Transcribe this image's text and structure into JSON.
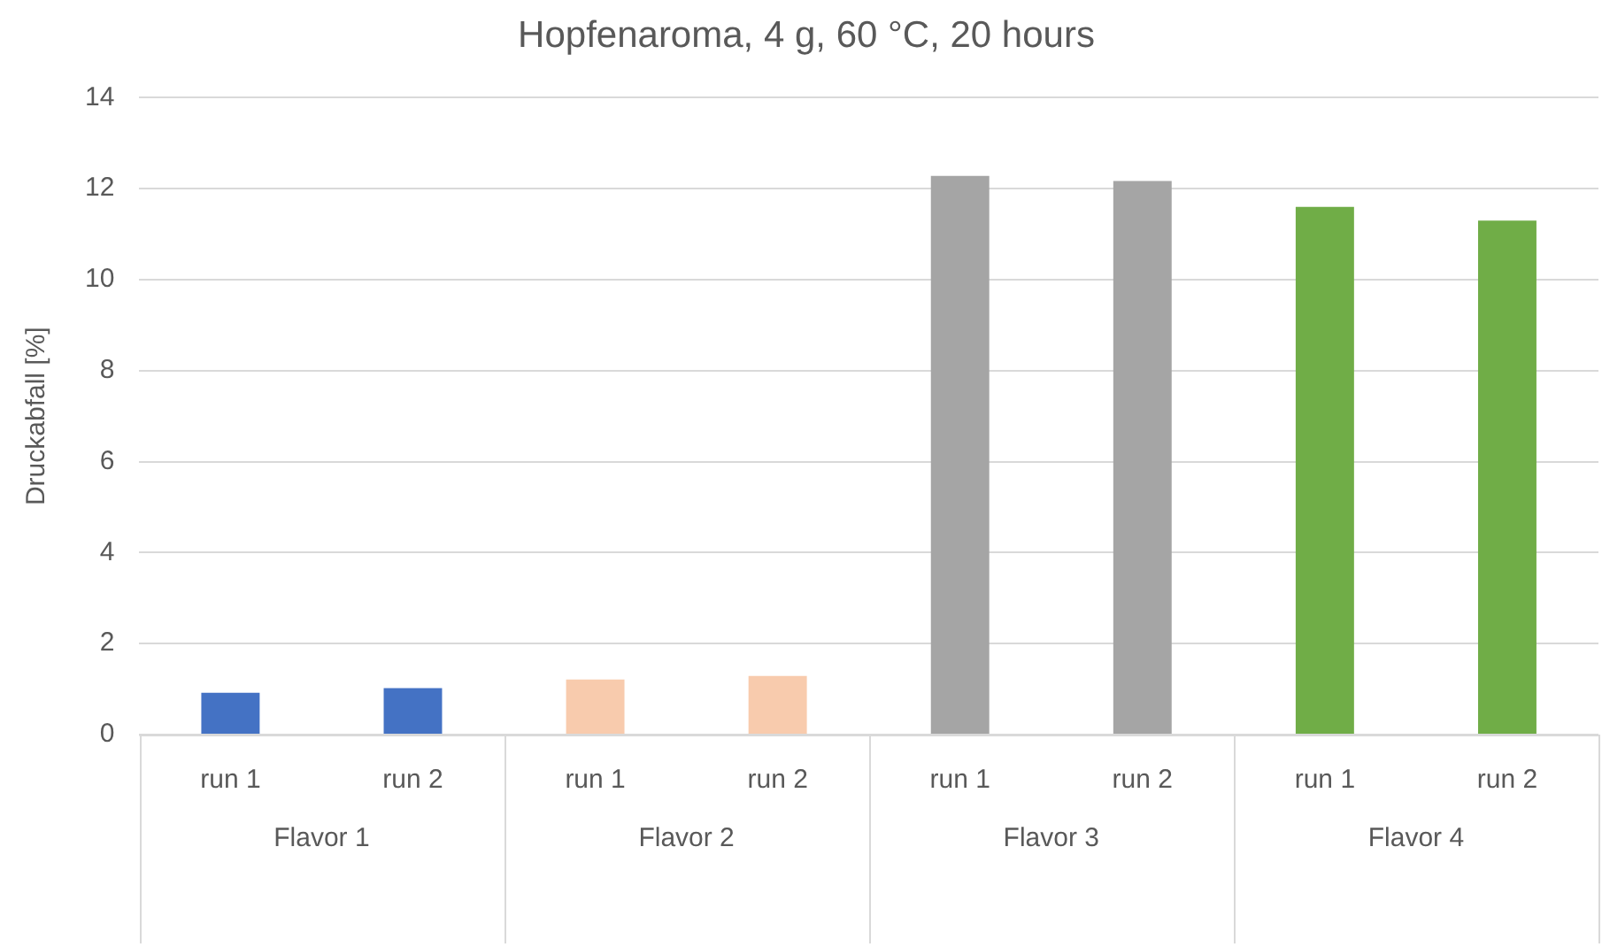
{
  "chart_data": {
    "type": "bar",
    "title": "Hopfenaroma, 4 g, 60 °C, 20 hours",
    "ylabel": "Druckabfall [%]",
    "categories": [
      "Flavor 1",
      "Flavor 2",
      "Flavor 3",
      "Flavor 4"
    ],
    "series": [
      {
        "name": "run 1",
        "colors": [
          "#4472c4",
          "#f8cbad",
          "#a5a5a5",
          "#70ad47"
        ],
        "values": [
          0.92,
          1.21,
          12.28,
          11.6
        ]
      },
      {
        "name": "run 2",
        "colors": [
          "#4472c4",
          "#f8cbad",
          "#a5a5a5",
          "#70ad47"
        ],
        "values": [
          1.02,
          1.29,
          12.17,
          11.3
        ]
      }
    ],
    "ylim": [
      0,
      14
    ],
    "yticks": [
      0,
      2,
      4,
      6,
      8,
      10,
      12,
      14
    ],
    "grid": "y",
    "legend": false
  }
}
